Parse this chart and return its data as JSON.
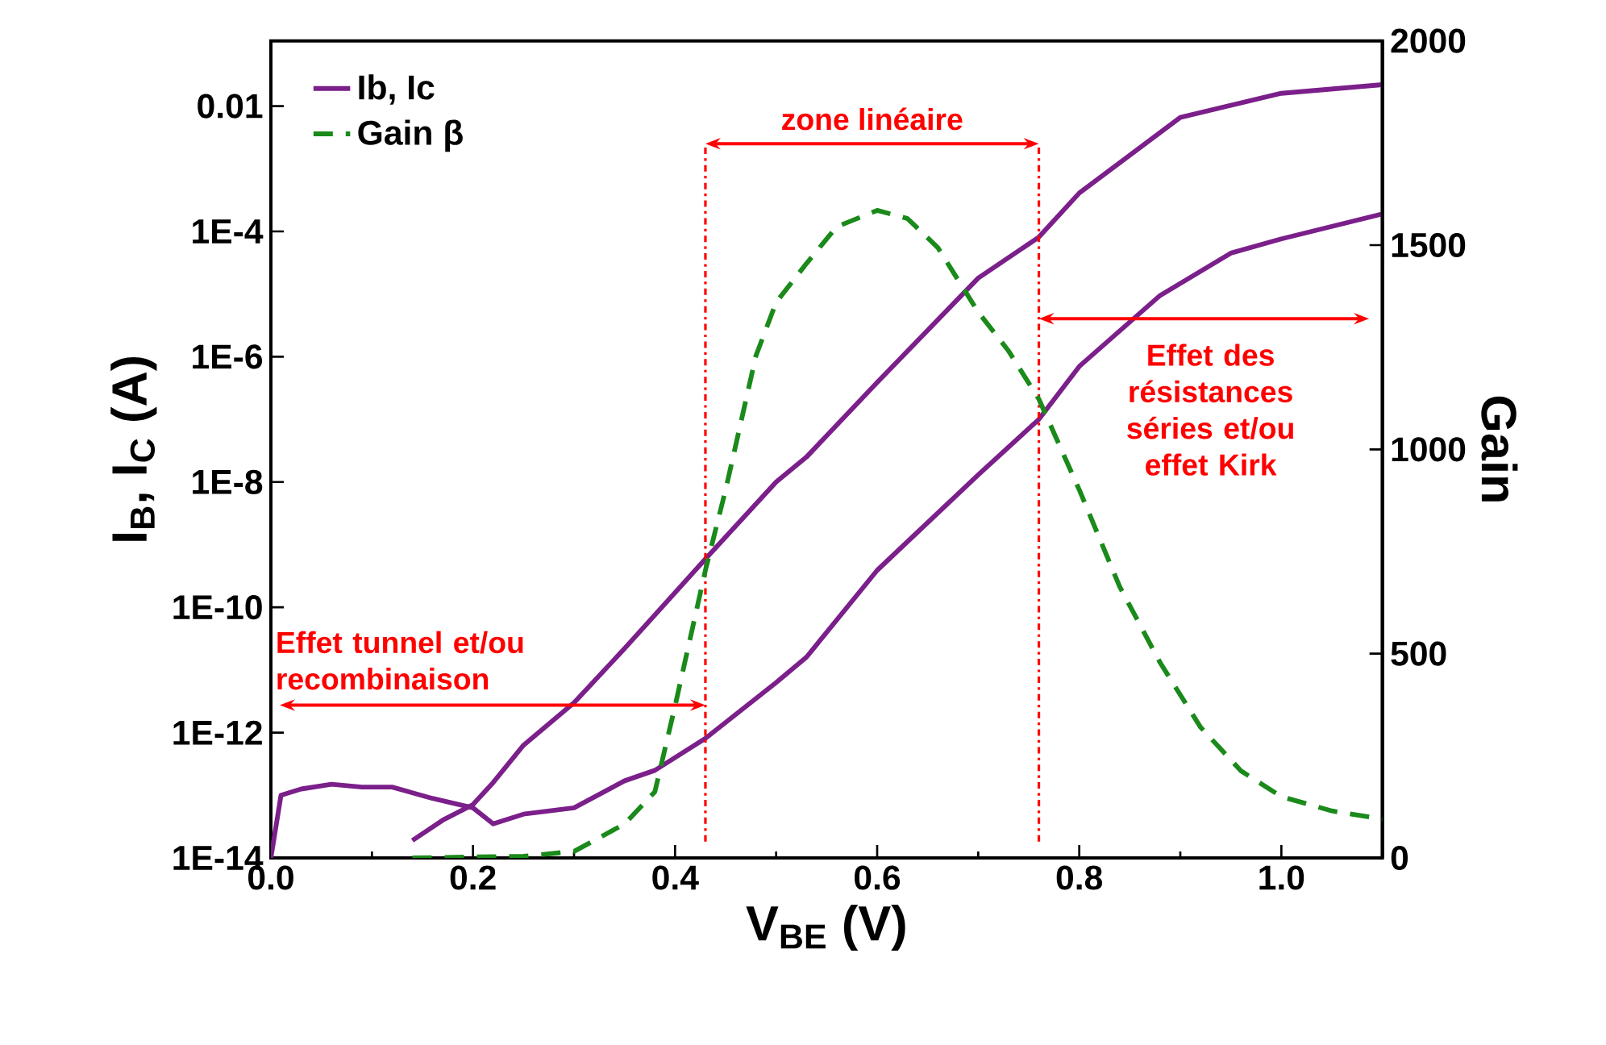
{
  "chart_data": {
    "type": "line",
    "xlabel": "V$_{BE}$ (V)",
    "ylabel": "I$_{B}$, I$_{C}$ (A)",
    "y2label": "Gain",
    "log": "y",
    "legend": "top left",
    "xlim": [
      0,
      1.1
    ],
    "xticks": [
      {
        "value": 0,
        "label": "0.0"
      },
      {
        "value": 0.2,
        "label": "0.2"
      },
      {
        "value": 0.4,
        "label": "0.4"
      },
      {
        "value": 0.6,
        "label": "0.6"
      },
      {
        "value": 0.8,
        "label": "0.8"
      },
      {
        "value": 1,
        "label": "1.0"
      }
    ],
    "ylim": [
      1e-14,
      0.11
    ],
    "yticks": [
      {
        "value": 1e-14,
        "label": "1E-14"
      },
      {
        "value": 1e-12,
        "label": "1E-12"
      },
      {
        "value": 1e-10,
        "label": "1E-10"
      },
      {
        "value": 1e-08,
        "label": "1E-8"
      },
      {
        "value": 1e-06,
        "label": "1E-6"
      },
      {
        "value": 0.0001,
        "label": "1E-4"
      },
      0.01
    ],
    "y2lim": [
      0,
      2000
    ],
    "y2ticks": [
      0,
      500,
      1000,
      1500,
      2000
    ],
    "series": [
      {
        "name": "Ib, Ic",
        "color": "#7b1f8a",
        "line_style": "solid",
        "x": [
          0,
          0.01,
          0.03,
          0.06,
          0.09,
          0.12,
          0.16,
          0.2,
          0.22,
          0.25,
          0.3,
          0.35,
          0.38,
          0.43,
          0.5,
          0.53,
          0.6,
          0.7,
          0.76,
          0.8,
          0.88,
          0.95,
          1.0,
          1.1
        ],
        "values": [
          1e-14,
          1e-13,
          1.26e-13,
          1.5e-13,
          1.35e-13,
          1.35e-13,
          8.9e-14,
          6.3e-14,
          3.5e-14,
          5e-14,
          6.3e-14,
          1.7e-13,
          2.5e-13,
          8.1e-13,
          6.3e-12,
          1.6e-11,
          3.9e-10,
          1.3e-08,
          1e-07,
          7e-07,
          9.5e-06,
          4.5e-05,
          7.6e-05,
          0.00019
        ]
      },
      {
        "color": "#7b1f8a",
        "line_style": "solid",
        "x": [
          0.14,
          0.17,
          0.2,
          0.22,
          0.25,
          0.3,
          0.35,
          0.43,
          0.5,
          0.53,
          0.6,
          0.7,
          0.76,
          0.8,
          0.9,
          1.0,
          1.1
        ],
        "values": [
          1.9e-14,
          4e-14,
          7.1e-14,
          1.6e-13,
          6.3e-13,
          3e-12,
          2.2e-11,
          5.9e-10,
          1e-08,
          2.5e-08,
          3.9e-07,
          1.8e-05,
          8.1e-05,
          0.00041,
          0.0066,
          0.016,
          0.022
        ]
      },
      {
        "name": "Gain β",
        "color": "#1a8a1a",
        "line_style": "dashed",
        "axis": "y2",
        "x": [
          0.14,
          0.25,
          0.3,
          0.35,
          0.38,
          0.4,
          0.43,
          0.45,
          0.48,
          0.5,
          0.53,
          0.56,
          0.6,
          0.63,
          0.66,
          0.7,
          0.73,
          0.76,
          0.8,
          0.84,
          0.88,
          0.92,
          0.96,
          1.0,
          1.05,
          1.1
        ],
        "values": [
          0,
          4,
          16,
          83,
          162,
          372,
          704,
          901,
          1229,
          1360,
          1455,
          1545,
          1585,
          1565,
          1494,
          1336,
          1241,
          1123,
          901,
          664,
          478,
          320,
          213,
          150,
          115,
          95
        ]
      }
    ],
    "ref_lines": [
      {
        "axis": "x",
        "value": 0.43,
        "color": "#ff0000",
        "line_style": "dashdot"
      },
      {
        "axis": "x",
        "value": 0.76,
        "color": "#ff0000",
        "line_style": "dashdot"
      }
    ],
    "annotations": [
      "zone linéaire",
      "Effet tunnel et/ou recombinaison",
      "Effet des résistances séries et/ou effet Kirk"
    ]
  }
}
